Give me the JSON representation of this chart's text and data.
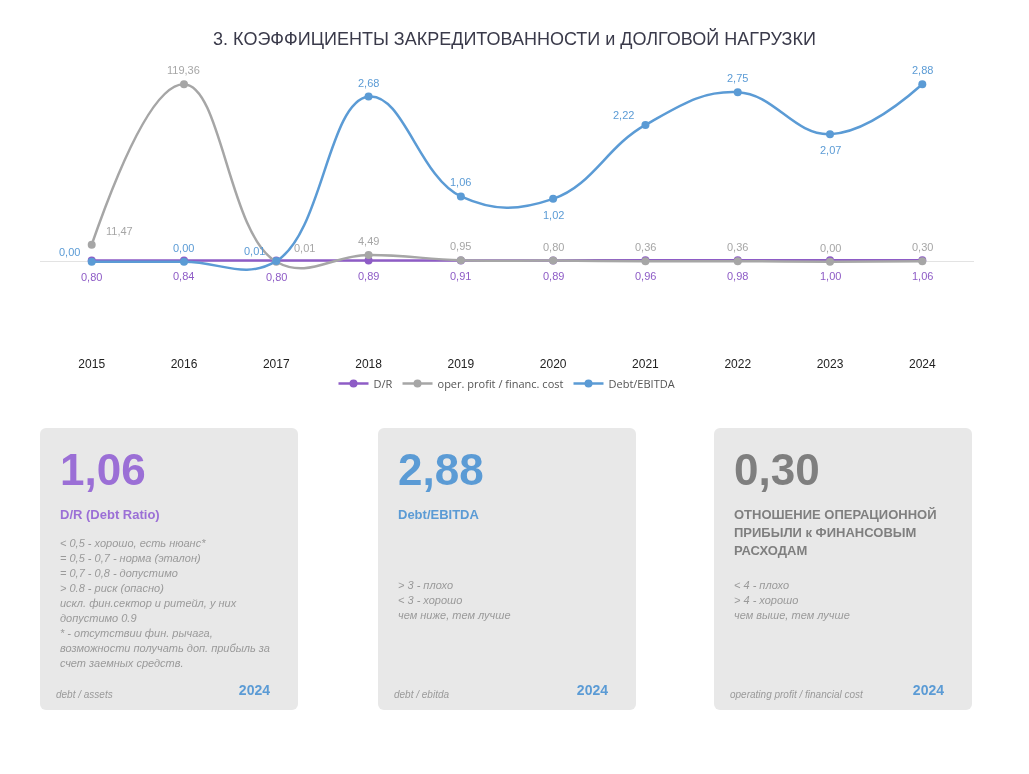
{
  "chart_data": [
    {
      "type": "line",
      "title": "3. КОЭФФИЦИЕНТЫ ЗАКРЕДИТОВАННОСТИ и ДОЛГОВОЙ НАГРУЗКИ",
      "categories": [
        "2015",
        "2016",
        "2017",
        "2018",
        "2019",
        "2020",
        "2021",
        "2022",
        "2023",
        "2024"
      ],
      "series": [
        {
          "name": "D/R",
          "color": "#8e5cc6",
          "values": [
            0.8,
            0.84,
            0.8,
            0.89,
            0.91,
            0.89,
            0.96,
            0.98,
            1.0,
            1.06
          ],
          "value_labels": [
            "0,80",
            "0,84",
            "0,80",
            "0,89",
            "0,91",
            "0,89",
            "0,96",
            "0,98",
            "1,00",
            "1,06"
          ]
        },
        {
          "name": "oper. profit / financ. cost",
          "color": "#a6a6a6",
          "values": [
            11.47,
            119.36,
            0.01,
            4.49,
            0.95,
            0.8,
            0.36,
            0.36,
            0.0,
            0.3
          ],
          "value_labels": [
            "11,47",
            "119,36",
            "0,01",
            "4,49",
            "0,95",
            "0,80",
            "0,36",
            "0,36",
            "0,00",
            "0,30"
          ]
        },
        {
          "name": "Debt/EBITDA",
          "color": "#5b9bd5",
          "axis": "y2",
          "values": [
            0.0,
            0.0,
            0.01,
            2.68,
            1.06,
            1.02,
            2.22,
            2.75,
            2.07,
            2.88
          ],
          "value_labels": [
            "0,00",
            "0,00",
            "0,01",
            "2,68",
            "1,06",
            "1,02",
            "2,22",
            "2,75",
            "2,07",
            "2,88"
          ]
        }
      ],
      "tick_labels": "x",
      "legend": "bottom",
      "marker": "circle",
      "grid": false
    },
    {
      "type": "other",
      "title": "1,06",
      "color": "#9b6fd6",
      "subtitle": "D/R (Debt Ratio)",
      "xlabel": "debt / assets",
      "annotations": [
        "< 0,5 - хорошо, есть нюанс*",
        "= 0,5 - 0,7 - норма (эталон)",
        "= 0,7 - 0,8 - допустимо",
        "> 0.8 - риск (опасно)",
        "искл. фин.сектор и ритейл, у них допустимо 0.9",
        "* - отсутствии фин. рычага, возможности получать доп. прибыль за счет заемных средств.",
        "2024"
      ]
    },
    {
      "type": "other",
      "title": "2,88",
      "color": "#5b9bd5",
      "subtitle": "Debt/EBITDA",
      "xlabel": "debt / ebitda",
      "annotations": [
        "> 3 - плохо",
        "< 3 - хорошо",
        "чем ниже, тем лучше",
        "2024"
      ]
    },
    {
      "type": "other",
      "title": "0,30",
      "color": "#7f7f7f",
      "subtitle": "ОТНОШЕНИЕ ОПЕРАЦИОННОЙ ПРИБЫЛИ к ФИНАНСОВЫМ РАСХОДАМ",
      "xlabel": "operating profit / financial cost",
      "annotations": [
        "< 4 - плохо",
        "> 4 - хорошо",
        "чем выше, тем лучше",
        "2024"
      ]
    }
  ]
}
